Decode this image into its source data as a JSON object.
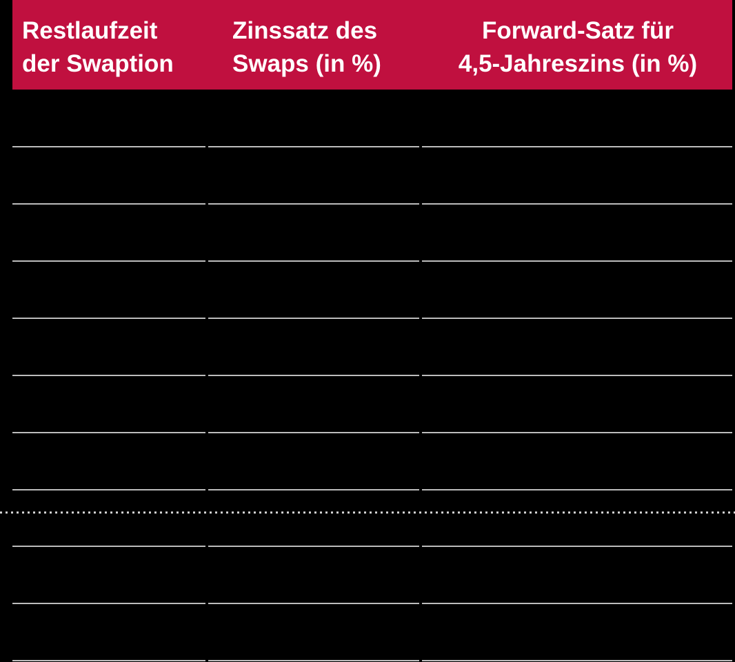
{
  "table": {
    "header": [
      [
        "Restlaufzeit",
        "der Swaption"
      ],
      [
        "Zinssatz des",
        "Swaps (in %)"
      ],
      [
        "Forward-Satz für",
        "4,5-Jahreszins (in %)"
      ]
    ]
  }
}
